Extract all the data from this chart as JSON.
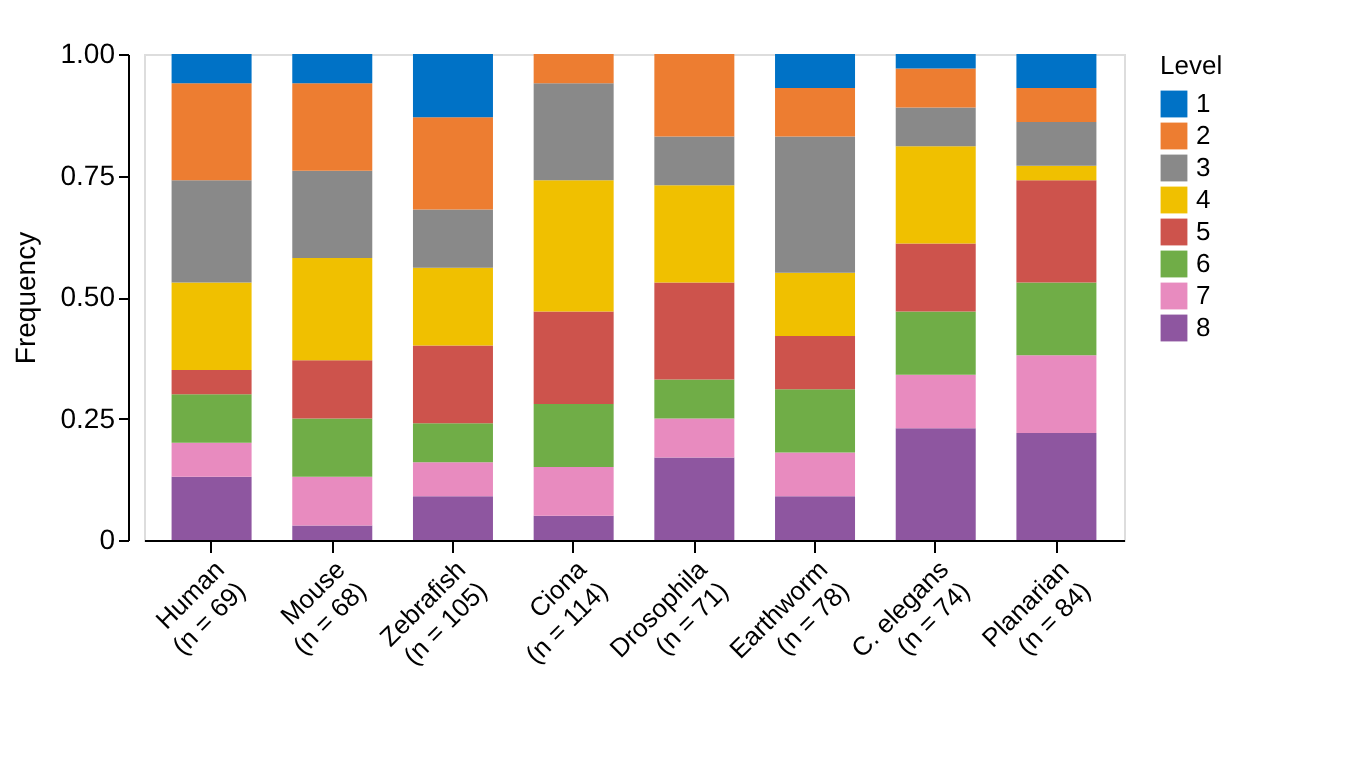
{
  "chart_data": {
    "type": "bar",
    "stacked": true,
    "ylabel": "Frequency",
    "legend_title": "Level",
    "legend": "right",
    "grid": false,
    "categories": [
      "Human\n(n = 69)",
      "Mouse\n(n = 68)",
      "Zebrafish\n(n = 105)",
      "Ciona\n(n = 114)",
      "Drosophila\n(n = 71)",
      "Earthworm\n(n = 78)",
      "C. elegans\n(n = 74)",
      "Planarian\n(n = 84)"
    ],
    "ylim": [
      0,
      1
    ],
    "yticks": [
      0,
      0.25,
      {
        "value": 0.5,
        "label": "0.50"
      },
      0.75,
      {
        "value": 1,
        "label": "1.00"
      }
    ],
    "series": [
      {
        "name": "8",
        "color": "#8e56a0",
        "values": [
          0.13,
          0.03,
          0.09,
          0.05,
          0.17,
          0.09,
          0.23,
          0.22
        ]
      },
      {
        "name": "7",
        "color": "#e88bbf",
        "values": [
          0.07,
          0.1,
          0.07,
          0.1,
          0.08,
          0.09,
          0.11,
          0.16
        ]
      },
      {
        "name": "6",
        "color": "#70ad47",
        "values": [
          0.1,
          0.12,
          0.08,
          0.13,
          0.08,
          0.13,
          0.13,
          0.15
        ]
      },
      {
        "name": "5",
        "color": "#cd534c",
        "values": [
          0.05,
          0.12,
          0.16,
          0.19,
          0.2,
          0.11,
          0.14,
          0.21
        ]
      },
      {
        "name": "4",
        "color": "#f0c000",
        "values": [
          0.18,
          0.21,
          0.16,
          0.27,
          0.2,
          0.13,
          0.2,
          0.03
        ]
      },
      {
        "name": "3",
        "color": "#898989",
        "values": [
          0.21,
          0.18,
          0.12,
          0.2,
          0.1,
          0.28,
          0.08,
          0.09
        ]
      },
      {
        "name": "2",
        "color": "#ed7d31",
        "values": [
          0.2,
          0.18,
          0.19,
          0.06,
          0.17,
          0.1,
          0.08,
          0.07
        ]
      },
      {
        "name": "1",
        "color": "#0072c6",
        "values": [
          0.06,
          0.06,
          0.13,
          0.0,
          0.0,
          0.07,
          0.03,
          0.07
        ]
      }
    ]
  }
}
